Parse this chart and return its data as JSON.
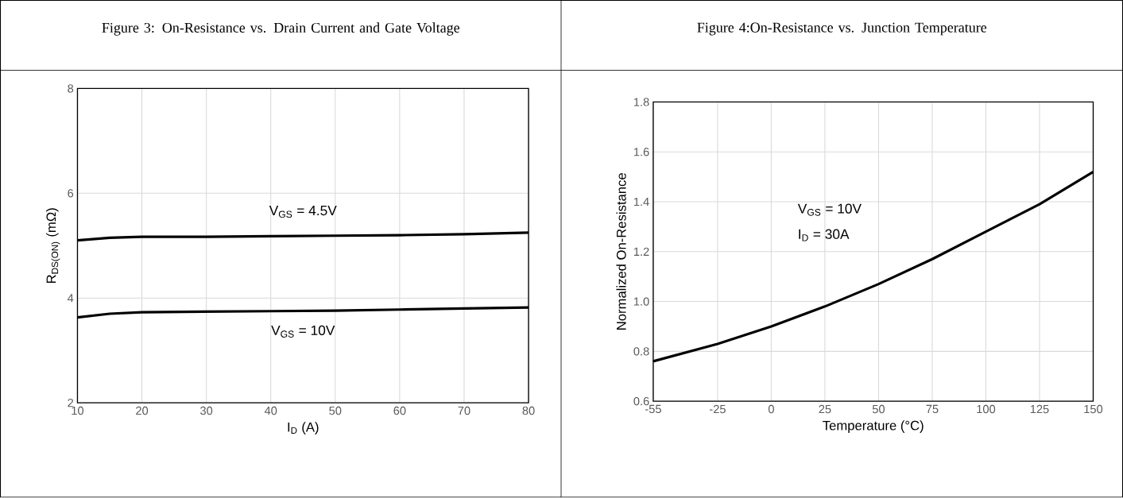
{
  "chart_data": [
    {
      "type": "line",
      "title": "Figure 3: On-Resistance vs. Drain Current and Gate Voltage",
      "xlabel": "I$_{D}$ (A)",
      "ylabel": "R$_{DS(ON)}$ (mΩ)",
      "xlim": [
        10,
        80
      ],
      "xticks": [
        10,
        20,
        30,
        40,
        50,
        60,
        70,
        80
      ],
      "ylim": [
        2,
        8
      ],
      "yticks": [
        2,
        4,
        6,
        8
      ],
      "grid": true,
      "series": [
        {
          "name": "V$_{GS}$ = 4.5V",
          "color": "#000000",
          "x": [
            10,
            15,
            20,
            30,
            40,
            50,
            60,
            70,
            80
          ],
          "values": [
            5.1,
            5.15,
            5.17,
            5.17,
            5.18,
            5.19,
            5.2,
            5.22,
            5.25
          ]
        },
        {
          "name": "V$_{GS}$ = 10V",
          "color": "#000000",
          "x": [
            10,
            15,
            20,
            30,
            40,
            50,
            60,
            70,
            80
          ],
          "values": [
            3.63,
            3.7,
            3.73,
            3.74,
            3.75,
            3.76,
            3.78,
            3.8,
            3.82
          ]
        }
      ]
    },
    {
      "type": "line",
      "title": "Figure 4:On-Resistance vs. Junction Temperature",
      "xlabel": "Temperature (°C)",
      "ylabel": "Normalized On-Resistance",
      "xlim": [
        -55,
        150
      ],
      "xticks": [
        -55,
        -25,
        0,
        25,
        50,
        75,
        100,
        125,
        150
      ],
      "ylim": [
        0.6,
        1.8
      ],
      "yticks": [
        0.6,
        0.8,
        {
          "value": 1.0,
          "label": "1.0"
        },
        1.2,
        1.4,
        1.6,
        1.8
      ],
      "grid": true,
      "annotations": [
        "V$_{GS}$ = 10V",
        "I$_{D}$ = 30A"
      ],
      "series": [
        {
          "color": "#000000",
          "x": [
            -55,
            -25,
            0,
            25,
            50,
            75,
            100,
            125,
            150
          ],
          "values": [
            0.76,
            0.83,
            0.9,
            0.98,
            1.07,
            1.17,
            1.28,
            1.39,
            1.52
          ]
        }
      ]
    }
  ]
}
